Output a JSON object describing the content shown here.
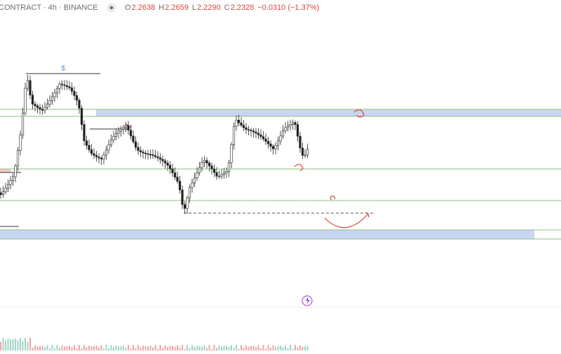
{
  "header": {
    "symbol": "CONTRACT · 4h · BINANCE",
    "ohlc": [
      {
        "label": "O",
        "value": "2.2638"
      },
      {
        "label": "H",
        "value": "2.2659"
      },
      {
        "label": "L",
        "value": "2.2290"
      },
      {
        "label": "C",
        "value": "2.2328"
      }
    ],
    "change": "−0.0310 (−1.37%)"
  },
  "annotations": {
    "marker": "$"
  }
}
